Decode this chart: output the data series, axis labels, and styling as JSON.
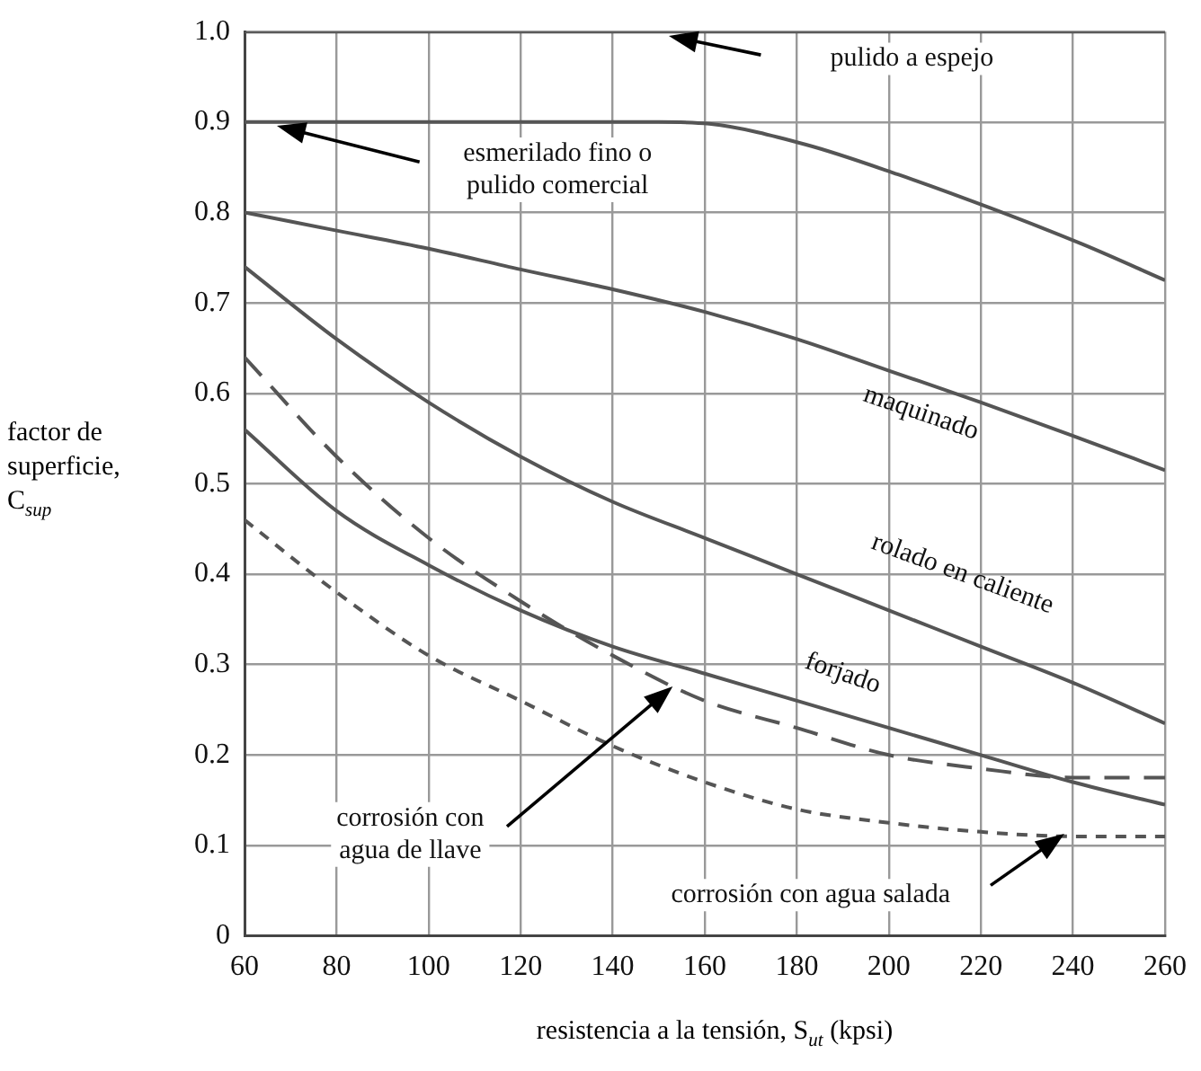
{
  "chart_data": {
    "type": "line",
    "xlabel": "resistencia a la tensión, S$_{ut}$ (kpsi)",
    "ylabel": "factor de superficie, C$_{sup}$",
    "xlim": [
      60,
      260
    ],
    "xticks": [
      60,
      80,
      100,
      120,
      140,
      160,
      180,
      200,
      220,
      240,
      260
    ],
    "ylim": [
      0,
      1
    ],
    "yticks": [
      {
        "value": 0,
        "label": "0"
      },
      {
        "value": 0.1,
        "label": "0.1"
      },
      {
        "value": 0.2,
        "label": "0.2"
      },
      {
        "value": 0.3,
        "label": "0.3"
      },
      {
        "value": 0.4,
        "label": "0.4"
      },
      {
        "value": 0.5,
        "label": "0.5"
      },
      {
        "value": 0.6,
        "label": "0.6"
      },
      {
        "value": 0.7,
        "label": "0.7"
      },
      {
        "value": 0.8,
        "label": "0.8"
      },
      {
        "value": 0.9,
        "label": "0.9"
      },
      {
        "value": 1,
        "label": "1.0"
      }
    ],
    "grid": true,
    "legend": false,
    "marker": "none",
    "x": [
      60,
      80,
      100,
      120,
      140,
      160,
      180,
      200,
      220,
      240,
      260
    ],
    "series": [
      {
        "name": "pulido a espejo",
        "color": "#555555",
        "line_style": "solid",
        "values": [
          1,
          1,
          1,
          1,
          1,
          1,
          1,
          1,
          1,
          1,
          1
        ]
      },
      {
        "name": "esmerilado fino o pulido comercial",
        "color": "#555555",
        "line_style": "solid",
        "x": [
          60,
          100,
          140,
          150,
          161,
          182,
          202,
          222,
          242,
          260
        ],
        "values": [
          0.9,
          0.9,
          0.9,
          0.9,
          0.898,
          0.875,
          0.842,
          0.805,
          0.765,
          0.725
        ]
      },
      {
        "name": "maquinado",
        "color": "#555555",
        "line_style": "solid",
        "values": [
          0.8,
          0.78,
          0.76,
          0.737,
          0.715,
          0.69,
          0.66,
          0.625,
          0.59,
          0.553,
          0.515
        ]
      },
      {
        "name": "rolado en caliente",
        "color": "#555555",
        "line_style": "solid",
        "values": [
          0.74,
          0.66,
          0.59,
          0.53,
          0.48,
          0.44,
          0.4,
          0.36,
          0.32,
          0.28,
          0.235
        ]
      },
      {
        "name": "forjado",
        "color": "#555555",
        "line_style": "solid",
        "values": [
          0.56,
          0.47,
          0.41,
          0.36,
          0.32,
          0.29,
          0.26,
          0.23,
          0.2,
          0.17,
          0.145
        ]
      },
      {
        "name": "corrosión con agua de llave",
        "color": "#555555",
        "line_style": "dashed",
        "values": [
          0.64,
          0.53,
          0.44,
          0.37,
          0.31,
          0.26,
          0.23,
          0.2,
          0.185,
          0.175,
          0.175
        ]
      },
      {
        "name": "corrosión con agua salada",
        "color": "#555555",
        "line_style": "dotted",
        "values": [
          0.46,
          0.38,
          0.31,
          0.26,
          0.21,
          0.17,
          0.14,
          0.125,
          0.115,
          0.11,
          0.11
        ]
      }
    ]
  }
}
